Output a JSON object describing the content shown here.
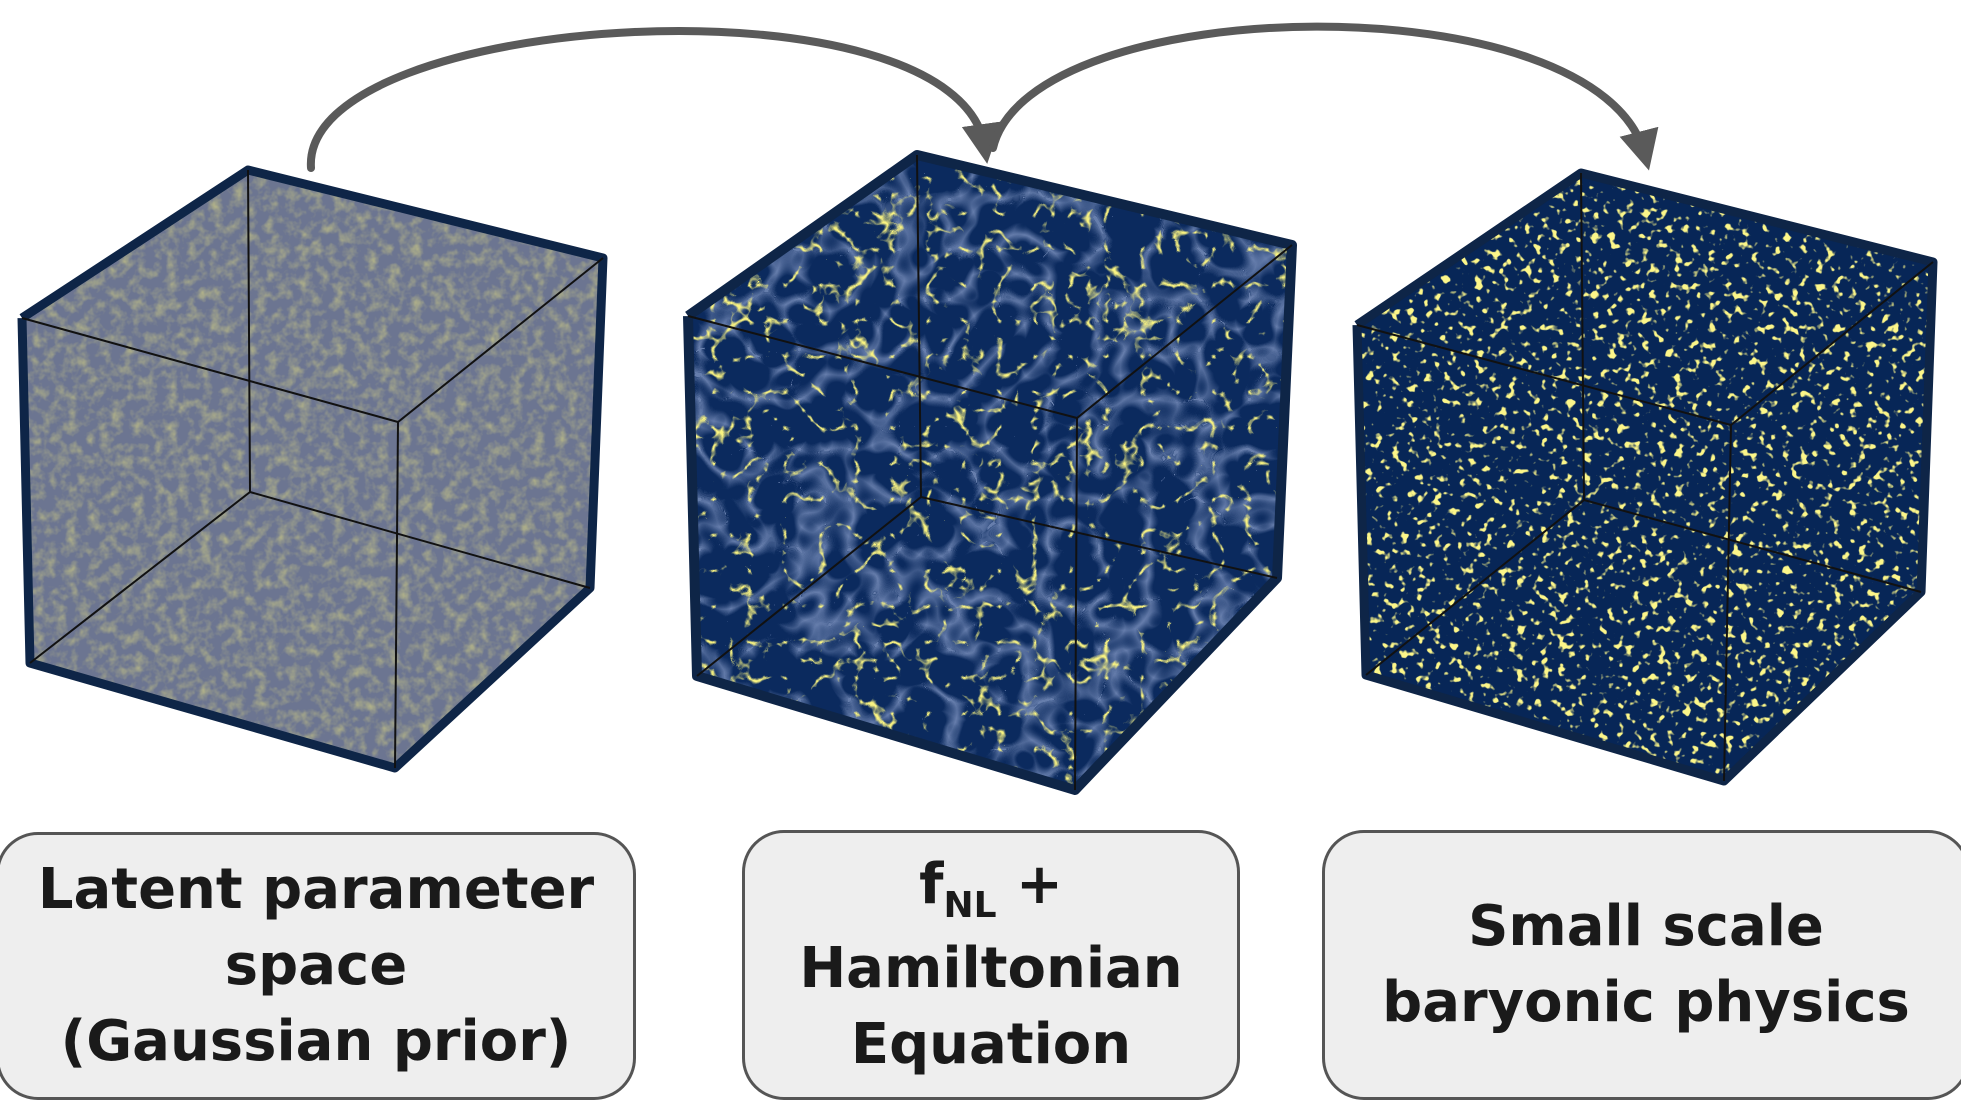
{
  "colors": {
    "cube_background": "#0b2a5e",
    "cube_frame": "#0e2547",
    "latent_fill": "#6c7591",
    "filament": "#f2e437",
    "arrow": "#5a5a5a",
    "label_fill": "#eeeeee",
    "label_border": "#555555"
  },
  "stages": [
    {
      "id": "latent",
      "lines": [
        "Latent parameter",
        "space",
        "(Gaussian prior)"
      ]
    },
    {
      "id": "fnl",
      "symbol": "f",
      "subscript": "NL",
      "symbol_suffix": " +",
      "lines": [
        "Hamiltonian",
        "Equation"
      ]
    },
    {
      "id": "small-scale",
      "lines": [
        "Small scale",
        "baryonic physics"
      ]
    }
  ],
  "arrows": [
    {
      "from": "latent",
      "to": "fnl",
      "icon": "curved-arrow-icon"
    },
    {
      "from": "fnl",
      "to": "small-scale",
      "icon": "curved-arrow-icon"
    }
  ]
}
